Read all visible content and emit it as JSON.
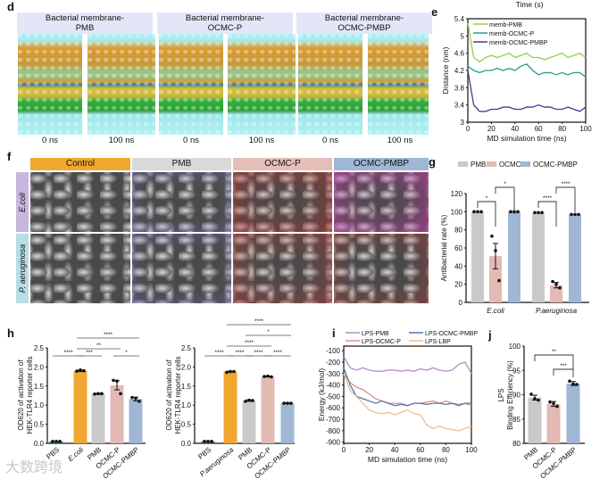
{
  "panels": {
    "d": "d",
    "e": "e",
    "f": "f",
    "g": "g",
    "h": "h",
    "i": "i",
    "j": "j"
  },
  "d": {
    "headers": [
      "Bacterial membrane-\nPMB",
      "Bacterial membrane-\nOCMC-P",
      "Bacterial membrane-\nOCMC-PMBP"
    ],
    "times": [
      "0 ns",
      "100 ns",
      "0 ns",
      "100 ns",
      "0 ns",
      "100 ns"
    ]
  },
  "f": {
    "columns": [
      "Control",
      "PMB",
      "OCMC-P",
      "OCMC-PMBP"
    ],
    "rows": [
      "E.coli",
      "P. aeruginosa"
    ],
    "column_colors": [
      "#f0a830",
      "#d9d9d9",
      "#e6bdb7",
      "#9fb6d4"
    ],
    "row_colors": [
      "#c7b6dd",
      "#b8dde6"
    ]
  },
  "watermark": "大数跨境",
  "chart_data": [
    {
      "id": "e",
      "type": "line",
      "title": "Time (s)",
      "xlabel": "MD simulation time (ns)",
      "ylabel": "Distance (nm)",
      "xlim": [
        0,
        100
      ],
      "ylim": [
        3.0,
        5.4
      ],
      "xticks": [
        0,
        20,
        40,
        60,
        80,
        100
      ],
      "yticks": [
        3.0,
        3.4,
        3.8,
        4.2,
        4.6,
        5.0,
        5.4
      ],
      "legend": "top-left",
      "x": [
        0,
        5,
        10,
        15,
        20,
        25,
        30,
        35,
        40,
        45,
        50,
        55,
        60,
        65,
        70,
        75,
        80,
        85,
        90,
        95,
        100
      ],
      "series": [
        {
          "name": "memb-PMB",
          "color": "#8fd14f",
          "values": [
            5.3,
            4.5,
            4.4,
            4.5,
            4.55,
            4.5,
            4.55,
            4.6,
            4.5,
            4.55,
            4.6,
            4.5,
            4.5,
            4.45,
            4.5,
            4.55,
            4.6,
            4.5,
            4.55,
            4.6,
            4.5
          ]
        },
        {
          "name": "memb-OCMC-P",
          "color": "#2a9d8f",
          "values": [
            4.3,
            4.2,
            4.15,
            4.2,
            4.2,
            4.25,
            4.2,
            4.25,
            4.2,
            4.3,
            4.35,
            4.2,
            4.1,
            4.15,
            4.15,
            4.1,
            4.15,
            4.1,
            4.15,
            4.15,
            4.05
          ]
        },
        {
          "name": "memb-OCMC-PMBP",
          "color": "#4b3a8c",
          "values": [
            4.2,
            3.4,
            3.25,
            3.25,
            3.3,
            3.3,
            3.35,
            3.35,
            3.3,
            3.3,
            3.35,
            3.35,
            3.4,
            3.35,
            3.35,
            3.3,
            3.3,
            3.35,
            3.3,
            3.25,
            3.35
          ]
        }
      ]
    },
    {
      "id": "g",
      "type": "bar",
      "xlabel": "",
      "ylabel": "Antibacterial rate (%)",
      "ylim": [
        0,
        120
      ],
      "yticks": [
        0,
        20,
        40,
        60,
        80,
        100,
        120
      ],
      "categories": [
        "E.coli",
        "P.aeruginosa"
      ],
      "legend": "top",
      "series": [
        {
          "name": "PMB",
          "color": "#c9c9c9",
          "values": [
            100,
            99
          ],
          "errors": [
            0,
            0
          ],
          "points": [
            [
              100,
              100,
              100
            ],
            [
              99,
              99,
              99
            ]
          ]
        },
        {
          "name": "OCMC-P",
          "color": "#e3b9b4",
          "values": [
            51,
            19
          ],
          "errors": [
            14,
            3
          ],
          "points": [
            [
              73,
              57,
              24
            ],
            [
              23,
              20,
              16
            ]
          ]
        },
        {
          "name": "OCMC-PMBP",
          "color": "#9fb6d4",
          "values": [
            100,
            97
          ],
          "errors": [
            0,
            0
          ],
          "points": [
            [
              100,
              100,
              100
            ],
            [
              97,
              97,
              97
            ]
          ]
        }
      ],
      "significance": [
        {
          "from": 0,
          "to": 1,
          "label": "*"
        },
        {
          "from": 1,
          "to": 2,
          "label": "*"
        },
        {
          "from": 3,
          "to": 4,
          "label": "****"
        },
        {
          "from": 4,
          "to": 5,
          "label": "****"
        }
      ]
    },
    {
      "id": "h1",
      "type": "bar",
      "ylabel": "OD620 of activation of\nHEK-TLR4 reporter cells",
      "ylim": [
        0,
        2.5
      ],
      "yticks": [
        0.0,
        0.5,
        1.0,
        1.5,
        2.0,
        2.5
      ],
      "categories": [
        "PBS",
        "E.coli",
        "PMB",
        "OCMC-P",
        "OCMC-PMBP"
      ],
      "values": [
        0.05,
        1.9,
        1.3,
        1.52,
        1.16
      ],
      "errors": [
        0,
        0.02,
        0.01,
        0.12,
        0.05
      ],
      "points": [
        [
          0.05,
          0.05,
          0.05
        ],
        [
          1.89,
          1.92,
          1.9
        ],
        [
          1.29,
          1.3,
          1.3
        ],
        [
          1.65,
          1.63,
          1.3
        ],
        [
          1.2,
          1.18,
          1.1
        ]
      ],
      "colors": [
        "#2f6f73",
        "#f0a830",
        "#c9c9c9",
        "#e3b9b4",
        "#9fb6d4"
      ],
      "significance": [
        {
          "from": 0,
          "to": 1,
          "label": "****"
        },
        {
          "from": 1,
          "to": 2,
          "label": "***"
        },
        {
          "from": 3,
          "to": 4,
          "label": "*"
        },
        {
          "from": 1,
          "to": 3,
          "label": "**"
        },
        {
          "from": 1,
          "to": 4,
          "label": "****"
        }
      ]
    },
    {
      "id": "h2",
      "type": "bar",
      "ylabel": "OD620 of activation of\nHEK-TLR4 reporter cells",
      "ylim": [
        0,
        2.5
      ],
      "yticks": [
        0.0,
        0.5,
        1.0,
        1.5,
        2.0,
        2.5
      ],
      "categories": [
        "PBS",
        "P.aeruginosa",
        "PMB",
        "OCMC-P",
        "OCMC-PMBP"
      ],
      "values": [
        0.05,
        1.88,
        1.12,
        1.75,
        1.05
      ],
      "errors": [
        0,
        0.01,
        0.02,
        0.01,
        0.01
      ],
      "points": [
        [
          0.05,
          0.05,
          0.05
        ],
        [
          1.86,
          1.88,
          1.88
        ],
        [
          1.1,
          1.13,
          1.12
        ],
        [
          1.75,
          1.76,
          1.74
        ],
        [
          1.05,
          1.05,
          1.05
        ]
      ],
      "colors": [
        "#2f6f73",
        "#f0a830",
        "#c9c9c9",
        "#e3b9b4",
        "#9fb6d4"
      ],
      "significance": [
        {
          "from": 0,
          "to": 1,
          "label": "****"
        },
        {
          "from": 1,
          "to": 2,
          "label": "****"
        },
        {
          "from": 2,
          "to": 3,
          "label": "****"
        },
        {
          "from": 3,
          "to": 4,
          "label": "****"
        },
        {
          "from": 1,
          "to": 3,
          "label": "****"
        },
        {
          "from": 2,
          "to": 4,
          "label": "*"
        },
        {
          "from": 1,
          "to": 4,
          "label": "****"
        }
      ]
    },
    {
      "id": "i",
      "type": "line",
      "xlabel": "MD simulation time (ns)",
      "ylabel": "Energy (kJ/mol)",
      "xlim": [
        0,
        100
      ],
      "ylim": [
        -910,
        -60
      ],
      "xticks": [
        0,
        20,
        40,
        60,
        80,
        100
      ],
      "yticks": [
        -100,
        -200,
        -300,
        -400,
        -500,
        -600,
        -700,
        -800,
        -900
      ],
      "legend": "top",
      "x": [
        0,
        5,
        10,
        15,
        20,
        25,
        30,
        35,
        40,
        45,
        50,
        55,
        60,
        65,
        70,
        75,
        80,
        85,
        90,
        95,
        100
      ],
      "series": [
        {
          "name": "LPS-PMB",
          "color": "#b48cc8",
          "values": [
            -150,
            -250,
            -270,
            -250,
            -270,
            -280,
            -280,
            -270,
            -270,
            -280,
            -270,
            -280,
            -260,
            -270,
            -250,
            -270,
            -280,
            -270,
            -220,
            -200,
            -300
          ]
        },
        {
          "name": "LPS-OCMC-P",
          "color": "#d4928a",
          "values": [
            -300,
            -380,
            -420,
            -440,
            -480,
            -520,
            -540,
            -560,
            -560,
            -560,
            -580,
            -560,
            -560,
            -550,
            -540,
            -560,
            -540,
            -560,
            -570,
            -560,
            -580
          ]
        },
        {
          "name": "LPS-OCMC-PMBP",
          "color": "#4f79a8",
          "values": [
            -250,
            -400,
            -500,
            -520,
            -540,
            -560,
            -540,
            -560,
            -580,
            -570,
            -580,
            -560,
            -560,
            -570,
            -560,
            -560,
            -570,
            -560,
            -580,
            -560,
            -560
          ]
        },
        {
          "name": "LPS-LBP",
          "color": "#f4bb8e",
          "values": [
            -300,
            -450,
            -500,
            -560,
            -620,
            -640,
            -650,
            -640,
            -660,
            -640,
            -620,
            -650,
            -660,
            -750,
            -780,
            -760,
            -780,
            -790,
            -800,
            -780,
            -760
          ]
        }
      ]
    },
    {
      "id": "j",
      "type": "bar",
      "ylabel": "LPS\nBinding Efficiency (%)",
      "ylim": [
        80,
        100
      ],
      "yticks": [
        80,
        85,
        90,
        95,
        100
      ],
      "categories": [
        "PMB",
        "OCMC-P",
        "OCMC-PMBP"
      ],
      "values": [
        89.4,
        88.1,
        92.3
      ],
      "errors": [
        0.5,
        0.5,
        0.4
      ],
      "points": [
        [
          90.1,
          89.2,
          88.9
        ],
        [
          88.5,
          88.2,
          87.6
        ],
        [
          92.8,
          92.2,
          92.1
        ]
      ],
      "colors": [
        "#c9c9c9",
        "#e3b9b4",
        "#9fb6d4"
      ],
      "significance": [
        {
          "from": 1,
          "to": 2,
          "label": "***"
        },
        {
          "from": 0,
          "to": 2,
          "label": "**"
        }
      ]
    }
  ]
}
